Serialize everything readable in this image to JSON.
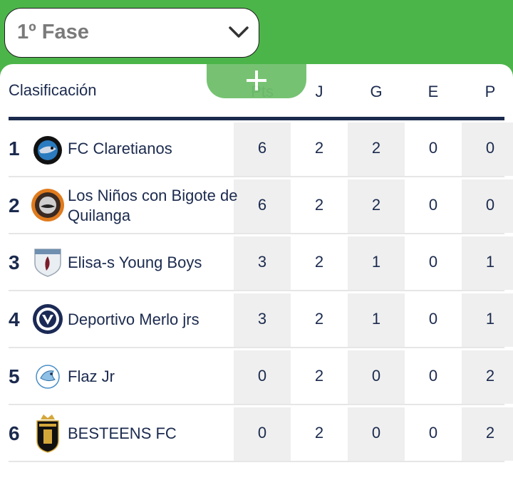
{
  "phase_select": {
    "value": "1º Fase",
    "icon": "chevron-down-icon"
  },
  "add_button": {
    "icon": "plus-icon"
  },
  "table": {
    "title": "Clasificación",
    "columns": [
      "Pts",
      "J",
      "G",
      "E",
      "P"
    ],
    "rows": [
      {
        "pos": "1",
        "team": "FC Claretianos",
        "logo": "fc-claretianos-logo",
        "pts": "6",
        "j": "2",
        "g": "2",
        "e": "0",
        "p": "0"
      },
      {
        "pos": "2",
        "team": "Los Niños con Bigote de Quilanga",
        "logo": "los-ninos-con-bigote-logo",
        "pts": "6",
        "j": "2",
        "g": "2",
        "e": "0",
        "p": "0"
      },
      {
        "pos": "3",
        "team": "Elisa-s Young Boys",
        "logo": "elisa-s-young-boys-logo",
        "pts": "3",
        "j": "2",
        "g": "1",
        "e": "0",
        "p": "1"
      },
      {
        "pos": "4",
        "team": "Deportivo Merlo jrs",
        "logo": "deportivo-merlo-logo",
        "pts": "3",
        "j": "2",
        "g": "1",
        "e": "0",
        "p": "1"
      },
      {
        "pos": "5",
        "team": "Flaz Jr",
        "logo": "flaz-jr-logo",
        "pts": "0",
        "j": "2",
        "g": "0",
        "e": "0",
        "p": "2"
      },
      {
        "pos": "6",
        "team": "BESTEENS FC",
        "logo": "besteens-fc-logo",
        "pts": "0",
        "j": "2",
        "g": "0",
        "e": "0",
        "p": "2"
      }
    ]
  }
}
